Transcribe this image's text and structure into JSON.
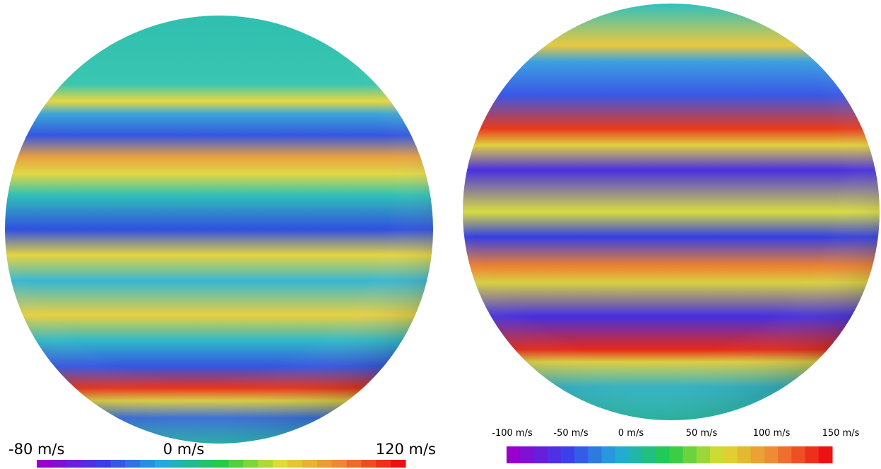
{
  "panels": [
    {
      "colorbar_labels": [
        "-80 m/s",
        "0 m/s",
        "120 m/s"
      ]
    },
    {
      "colorbar_labels": [
        "-100 m/s",
        "-50 m/s",
        "0 m/s",
        "50 m/s",
        "100 m/s",
        "150 m/s"
      ]
    }
  ]
}
